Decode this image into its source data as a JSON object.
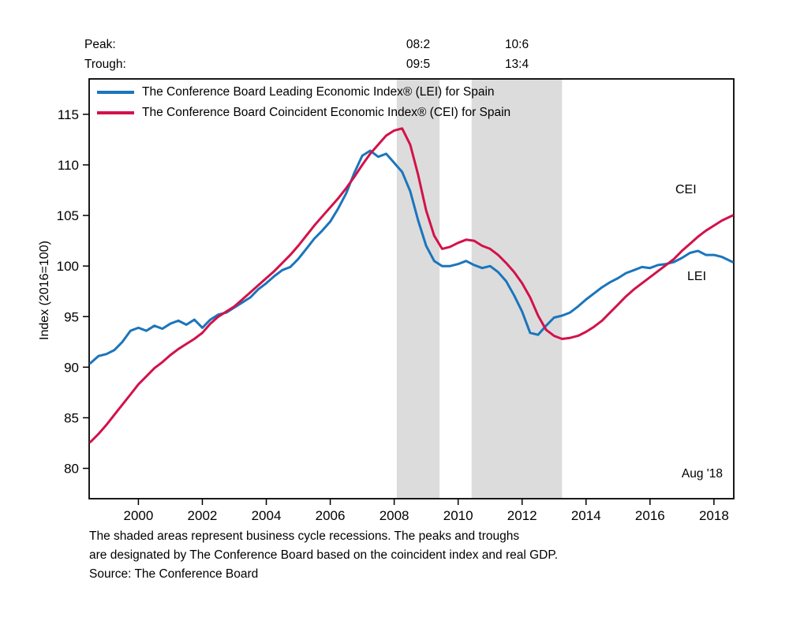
{
  "annotations": {
    "peak_label": "Peak:",
    "trough_label": "Trough:",
    "recessions": [
      {
        "peak": "08:2",
        "trough": "09:5"
      },
      {
        "peak": "10:6",
        "trough": "13:4"
      }
    ],
    "cei_label": "CEI",
    "lei_label": "LEI",
    "last_point_label": "Aug '18"
  },
  "footer": {
    "line1": "The shaded areas represent business cycle recessions. The peaks and troughs",
    "line2": "are designated by The Conference Board based on the coincident index and real GDP.",
    "line3": "Source: The Conference Board"
  },
  "chart_data": {
    "type": "line",
    "title": "",
    "xlabel": "",
    "ylabel": "Index (2016=100)",
    "xlim": [
      1998.46,
      2018.62
    ],
    "ylim": [
      77,
      118.5
    ],
    "xticks": [
      2000,
      2002,
      2004,
      2006,
      2008,
      2010,
      2012,
      2014,
      2016,
      2018
    ],
    "yticks": [
      80,
      85,
      90,
      95,
      100,
      105,
      110,
      115
    ],
    "grid": false,
    "legend_position": "top-left",
    "recession_bands": [
      [
        2008.08,
        2009.42
      ],
      [
        2010.42,
        2013.25
      ]
    ],
    "colors": {
      "recession": "#dcdcdc",
      "axis": "#000000",
      "lei": "#1b75bc",
      "cei": "#d2124a"
    },
    "x": [
      1998.5,
      1998.75,
      1999,
      1999.25,
      1999.5,
      1999.75,
      2000,
      2000.25,
      2000.5,
      2000.75,
      2001,
      2001.25,
      2001.5,
      2001.75,
      2002,
      2002.25,
      2002.5,
      2002.75,
      2003,
      2003.25,
      2003.5,
      2003.75,
      2004,
      2004.25,
      2004.5,
      2004.75,
      2005,
      2005.25,
      2005.5,
      2005.75,
      2006,
      2006.25,
      2006.5,
      2006.75,
      2007,
      2007.25,
      2007.5,
      2007.75,
      2008,
      2008.25,
      2008.5,
      2008.75,
      2009,
      2009.25,
      2009.5,
      2009.75,
      2010,
      2010.25,
      2010.5,
      2010.75,
      2011,
      2011.25,
      2011.5,
      2011.75,
      2012,
      2012.25,
      2012.5,
      2012.75,
      2013,
      2013.25,
      2013.5,
      2013.75,
      2014,
      2014.25,
      2014.5,
      2014.75,
      2015,
      2015.25,
      2015.5,
      2015.75,
      2016,
      2016.25,
      2016.5,
      2016.75,
      2017,
      2017.25,
      2017.5,
      2017.75,
      2018,
      2018.25,
      2018.58
    ],
    "series": [
      {
        "name": "LEI",
        "label": "The Conference Board Leading Economic Index® (LEI) for Spain",
        "color": "#1b75bc",
        "values": [
          90.4,
          91.1,
          91.3,
          91.7,
          92.5,
          93.6,
          93.9,
          93.6,
          94.1,
          93.8,
          94.3,
          94.6,
          94.2,
          94.7,
          93.9,
          94.7,
          95.2,
          95.4,
          95.9,
          96.4,
          96.9,
          97.7,
          98.3,
          99.0,
          99.6,
          99.9,
          100.7,
          101.7,
          102.7,
          103.5,
          104.4,
          105.7,
          107.2,
          109.2,
          110.9,
          111.4,
          110.8,
          111.1,
          110.2,
          109.3,
          107.4,
          104.5,
          102.0,
          100.5,
          100.0,
          100.0,
          100.2,
          100.5,
          100.1,
          99.8,
          100.0,
          99.4,
          98.5,
          97.1,
          95.5,
          93.4,
          93.2,
          94.1,
          94.9,
          95.1,
          95.4,
          96.0,
          96.7,
          97.3,
          97.9,
          98.4,
          98.8,
          99.3,
          99.6,
          99.9,
          99.8,
          100.1,
          100.2,
          100.4,
          100.8,
          101.3,
          101.5,
          101.1,
          101.1,
          100.9,
          100.4
        ]
      },
      {
        "name": "CEI",
        "label": "The Conference Board Coincident Economic Index® (CEI) for Spain",
        "color": "#d2124a",
        "values": [
          82.6,
          83.4,
          84.3,
          85.3,
          86.3,
          87.3,
          88.3,
          89.1,
          89.9,
          90.5,
          91.2,
          91.8,
          92.3,
          92.8,
          93.4,
          94.3,
          95.0,
          95.5,
          96.0,
          96.7,
          97.4,
          98.1,
          98.8,
          99.5,
          100.3,
          101.1,
          102.0,
          103.0,
          104.0,
          104.9,
          105.8,
          106.7,
          107.7,
          108.8,
          110.0,
          111.1,
          112.0,
          112.9,
          113.4,
          113.6,
          112.0,
          109.0,
          105.5,
          103.0,
          101.7,
          101.9,
          102.3,
          102.6,
          102.5,
          102.0,
          101.7,
          101.1,
          100.3,
          99.4,
          98.3,
          96.9,
          95.1,
          93.7,
          93.1,
          92.8,
          92.9,
          93.1,
          93.5,
          94.0,
          94.6,
          95.4,
          96.2,
          97.0,
          97.7,
          98.3,
          98.9,
          99.5,
          100.1,
          100.7,
          101.5,
          102.2,
          102.9,
          103.5,
          104.0,
          104.5,
          105.0
        ]
      }
    ]
  }
}
